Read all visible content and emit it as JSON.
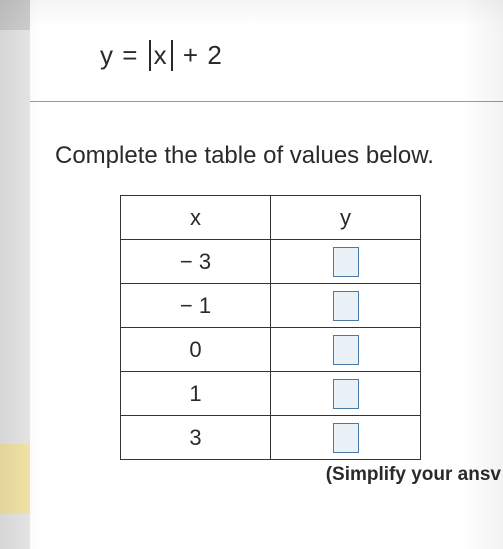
{
  "equation": {
    "lhs": "y",
    "eq": "=",
    "abs_var": "x",
    "plus": "+",
    "constant": "2"
  },
  "instruction": "Complete the table of values below.",
  "table": {
    "headers": {
      "x": "x",
      "y": "y"
    },
    "rows": [
      {
        "x": "− 3",
        "y": ""
      },
      {
        "x": "− 1",
        "y": ""
      },
      {
        "x": "0",
        "y": ""
      },
      {
        "x": "1",
        "y": ""
      },
      {
        "x": "3",
        "y": ""
      }
    ],
    "input_box": {
      "border_color": "#4a7ba6",
      "fill_color": "#eaf2f8"
    }
  },
  "footer": "(Simplify your ansv",
  "colors": {
    "page_bg": "#e8e8e8",
    "content_bg": "#ffffff",
    "text": "#2a2a2a",
    "table_border": "#333333",
    "yellow_tab": "#f5e6a8"
  },
  "fonts": {
    "equation_size_pt": 20,
    "instruction_size_pt": 18,
    "table_size_pt": 17
  }
}
